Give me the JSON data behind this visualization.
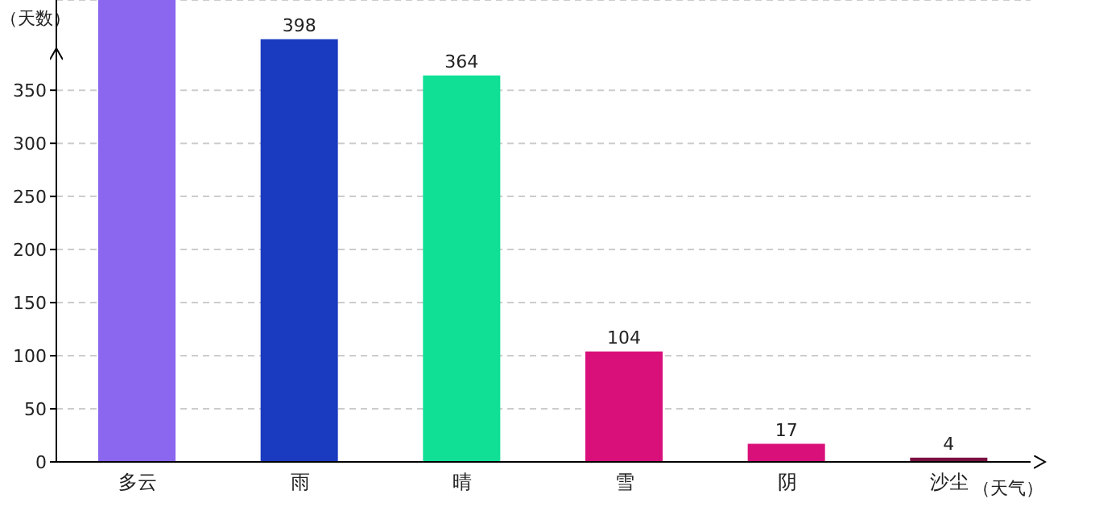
{
  "chart_data": {
    "type": "bar",
    "ylabel": "（天数）",
    "xlabel": "（天气）",
    "categories": [
      "多云",
      "雨",
      "晴",
      "雪",
      "阴",
      "沙尘"
    ],
    "values": [
      435,
      398,
      364,
      104,
      17,
      4
    ],
    "colors": [
      "#8b66ee",
      "#1a3abf",
      "#10e096",
      "#d9107a",
      "#d9107a",
      "#7a1040"
    ],
    "value_labels": [
      null,
      "398",
      "364",
      "104",
      "17",
      "4"
    ],
    "ylim": [
      0,
      435
    ],
    "yticks": [
      0,
      50,
      100,
      150,
      200,
      250,
      300,
      350
    ],
    "grid": "y",
    "legend": false
  }
}
